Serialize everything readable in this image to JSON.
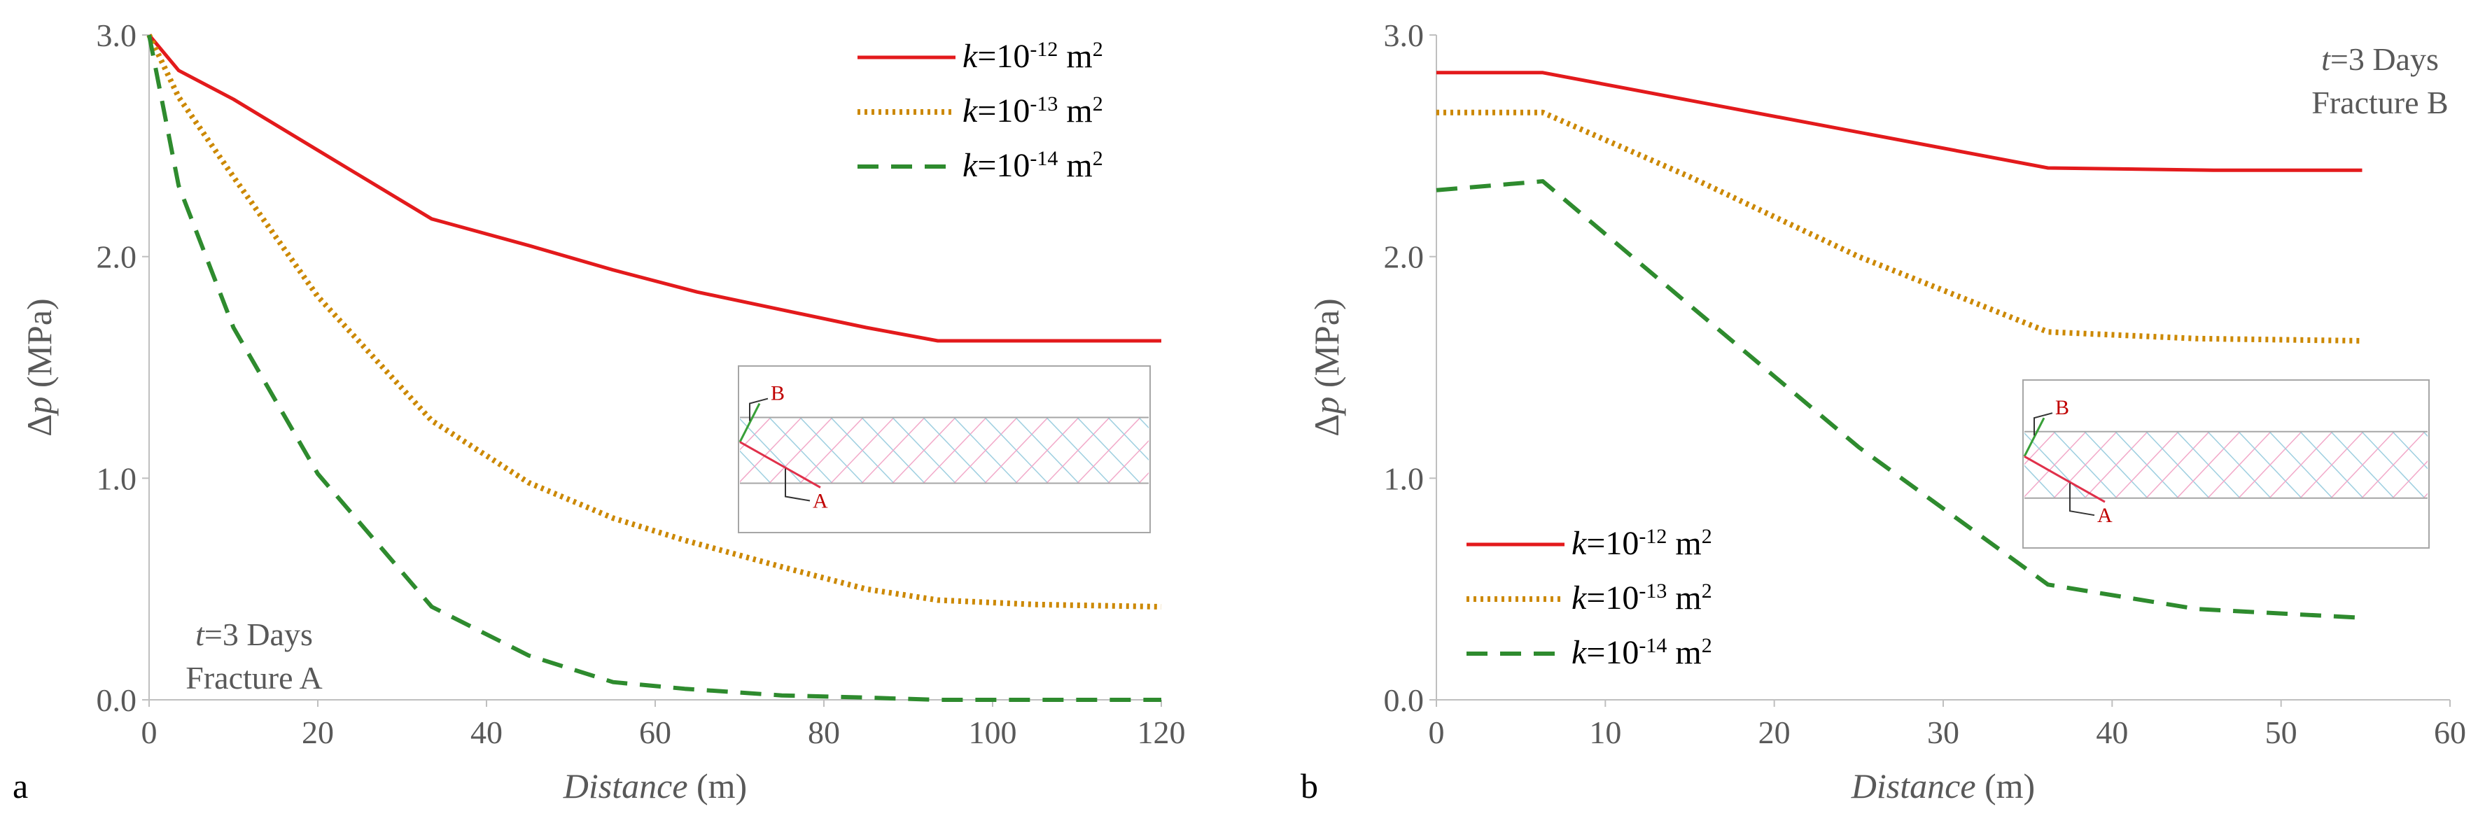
{
  "chart_data": [
    {
      "type": "line",
      "panel_label": "a",
      "xlabel": "Distance (m)",
      "ylabel": "Δp (MPa)",
      "xlim": [
        0,
        120
      ],
      "ylim": [
        0,
        3.0
      ],
      "xticks": [
        "0",
        "20",
        "40",
        "60",
        "80",
        "100",
        "120"
      ],
      "yticks": [
        "0.0",
        "1.0",
        "2.0",
        "3.0"
      ],
      "grid": false,
      "legend_position": "top-right",
      "annotation_lines": [
        "t=3 Days",
        "Fracture A"
      ],
      "series": [
        {
          "name": "k=10-12 m2",
          "color": "#e31a1c",
          "style": "solid",
          "x": [
            0,
            3.5,
            10,
            20,
            33.5,
            45,
            55,
            65,
            75,
            85,
            93.5,
            105,
            120
          ],
          "y": [
            3.0,
            2.84,
            2.71,
            2.48,
            2.17,
            2.05,
            1.94,
            1.84,
            1.76,
            1.68,
            1.62,
            1.62,
            1.62
          ]
        },
        {
          "name": "k=10-13 m2",
          "color": "#cc8800",
          "style": "dotted",
          "x": [
            0,
            3.5,
            10,
            20,
            33.5,
            45,
            55,
            63.5,
            75,
            85,
            93.5,
            105,
            120
          ],
          "y": [
            3.0,
            2.72,
            2.36,
            1.82,
            1.26,
            0.98,
            0.82,
            0.72,
            0.6,
            0.5,
            0.45,
            0.43,
            0.42
          ]
        },
        {
          "name": "k=10-14 m2",
          "color": "#2e8b2e",
          "style": "dashed",
          "x": [
            0,
            3.5,
            10,
            20,
            33.5,
            45,
            55,
            63.5,
            75,
            85,
            93.5,
            105,
            120
          ],
          "y": [
            3.0,
            2.32,
            1.68,
            1.02,
            0.42,
            0.2,
            0.08,
            0.05,
            0.02,
            0.01,
            0.0,
            0.0,
            0.0
          ]
        }
      ],
      "inset_labels": [
        "B",
        "A"
      ]
    },
    {
      "type": "line",
      "panel_label": "b",
      "xlabel": "Distance (m)",
      "ylabel": "Δp (MPa)",
      "xlim": [
        0,
        60
      ],
      "ylim": [
        0,
        3.0
      ],
      "xticks": [
        "0",
        "10",
        "20",
        "30",
        "40",
        "50",
        "60"
      ],
      "yticks": [
        "0.0",
        "1.0",
        "2.0",
        "3.0"
      ],
      "grid": false,
      "legend_position": "bottom-left",
      "annotation_lines": [
        "t=3 Days",
        "Fracture B"
      ],
      "series": [
        {
          "name": "k=10-12 m2",
          "color": "#e31a1c",
          "style": "solid",
          "x": [
            0,
            6.3,
            36.2,
            46,
            54.8
          ],
          "y": [
            2.83,
            2.83,
            2.4,
            2.39,
            2.39
          ]
        },
        {
          "name": "k=10-13 m2",
          "color": "#cc8800",
          "style": "dotted",
          "x": [
            0,
            6.3,
            15,
            25,
            36.2,
            45,
            54.8
          ],
          "y": [
            2.65,
            2.65,
            2.36,
            2.0,
            1.66,
            1.63,
            1.62
          ]
        },
        {
          "name": "k=10-14 m2",
          "color": "#2e8b2e",
          "style": "dashed",
          "x": [
            0,
            6.3,
            15,
            25,
            36.2,
            45,
            54.8
          ],
          "y": [
            2.3,
            2.34,
            1.78,
            1.14,
            0.52,
            0.41,
            0.37
          ]
        }
      ],
      "inset_labels": [
        "B",
        "A"
      ]
    }
  ]
}
